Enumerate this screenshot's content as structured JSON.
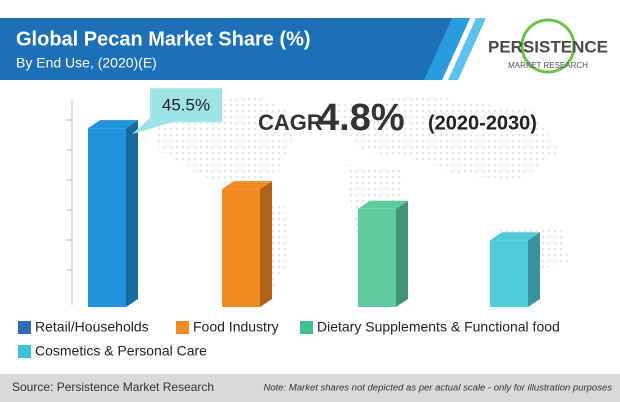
{
  "chart_data": {
    "type": "bar3d",
    "title": "Global Pecan Market Share (%)",
    "subtitle": "By End Use, (2020)(E)",
    "logo": {
      "name": "PERSISTENCE",
      "tagline": "MARKET RESEARCH"
    },
    "cagr": {
      "label": "CAGR",
      "value": "4.8%",
      "period": "(2020-2030)"
    },
    "categories": [
      "Retail/Households",
      "Food Industry",
      "Dietary Supplements & Functional food",
      "Cosmetics & Personal Care"
    ],
    "values": [
      45.5,
      30,
      25,
      17
    ],
    "value_labels": [
      "45.5%",
      null,
      null,
      null
    ],
    "colors": [
      "#1f93dc",
      "#f28a22",
      "#5fcc9f",
      "#4fcbd9"
    ],
    "legend_colors": [
      "#2d6db4",
      "#f28a22",
      "#3fc08f",
      "#3cc3d3"
    ],
    "source": "Source: Persistence Market Research",
    "note": "Note: Market shares not depicted as per actual scale - only for illustration purposes"
  }
}
